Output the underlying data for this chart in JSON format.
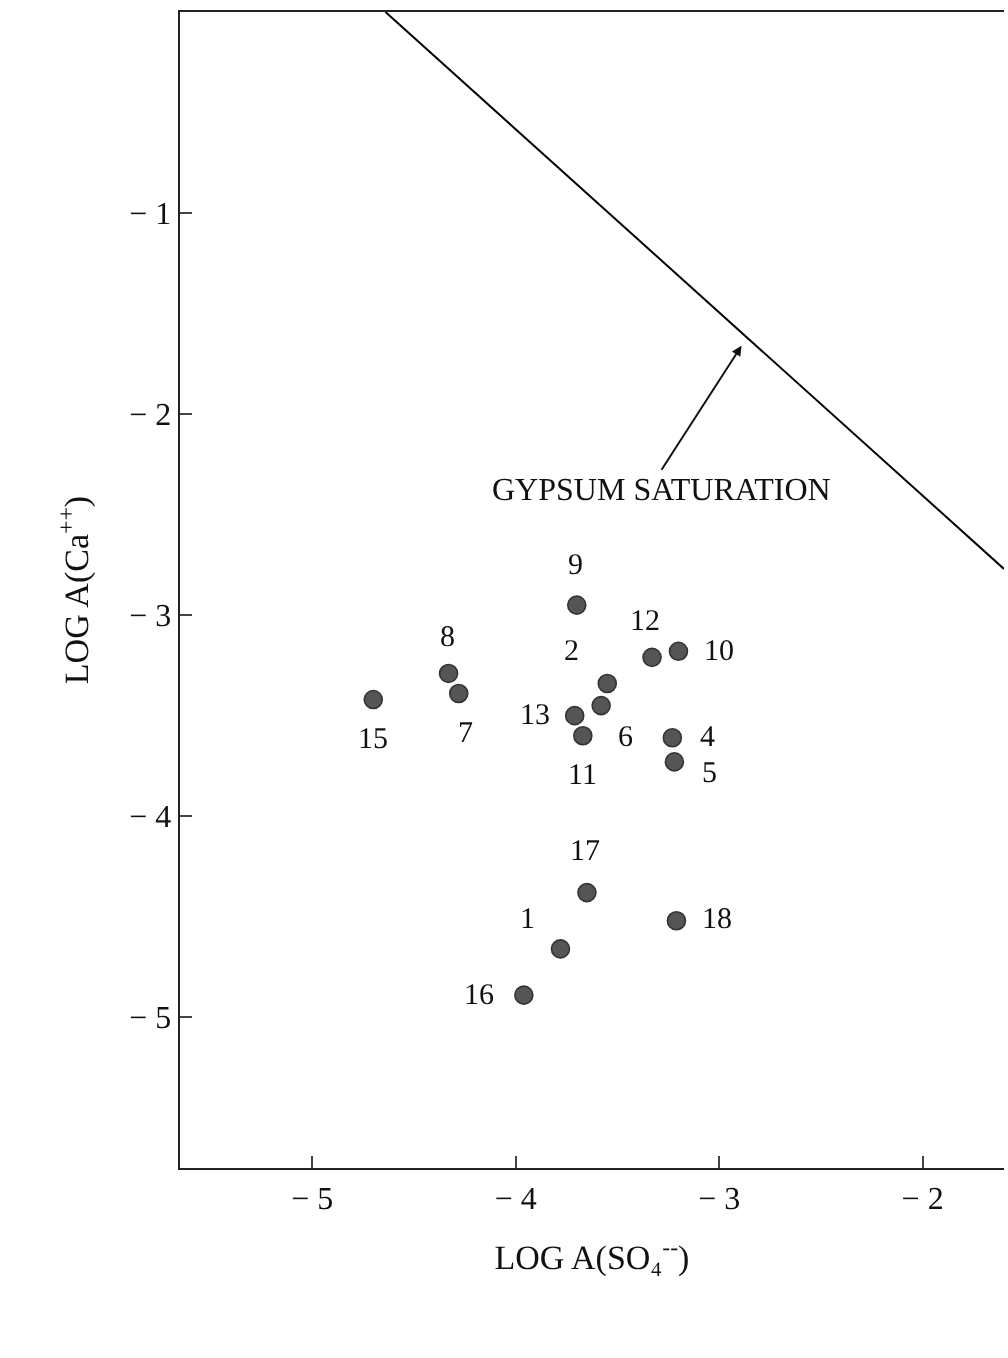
{
  "chart_data": {
    "type": "scatter",
    "xlabel": "LOG A(SO₄$^{--}$)",
    "ylabel": "LOG A(Ca$^{++}$)",
    "xlim": [
      -5.65,
      -1.6
    ],
    "ylim": [
      -5.75,
      0
    ],
    "xticks": [
      {
        "value": -5,
        "label": "− 5"
      },
      {
        "value": -4,
        "label": "− 4"
      },
      {
        "value": -3,
        "label": "− 3"
      },
      {
        "value": -2,
        "label": "− 2"
      }
    ],
    "yticks": [
      {
        "value": -1,
        "label": "− 1"
      },
      {
        "value": -2,
        "label": "− 2"
      },
      {
        "value": -3,
        "label": "− 3"
      },
      {
        "value": -4,
        "label": "− 4"
      },
      {
        "value": -5,
        "label": "− 5"
      }
    ],
    "legend": false,
    "annotations": [
      {
        "text": "GYPSUM SATURATION",
        "x": -2.89,
        "y": -1.66
      },
      {
        "text": "1",
        "x": -3.78,
        "y": -4.66
      },
      {
        "text": "2",
        "x": -3.55,
        "y": -3.34
      },
      {
        "text": "4",
        "x": -3.23,
        "y": -3.61
      },
      {
        "text": "5",
        "x": -3.22,
        "y": -3.73
      },
      {
        "text": "6",
        "x": -3.58,
        "y": -3.45
      },
      {
        "text": "7",
        "x": -4.28,
        "y": -3.39
      },
      {
        "text": "8",
        "x": -4.33,
        "y": -3.29
      },
      {
        "text": "9",
        "x": -3.7,
        "y": -2.95
      },
      {
        "text": "10",
        "x": -3.2,
        "y": -3.18
      },
      {
        "text": "11",
        "x": -3.67,
        "y": -3.6
      },
      {
        "text": "12",
        "x": -3.33,
        "y": -3.21
      },
      {
        "text": "13",
        "x": -3.71,
        "y": -3.5
      },
      {
        "text": "15",
        "x": -4.7,
        "y": -3.42
      },
      {
        "text": "16",
        "x": -3.96,
        "y": -4.89
      },
      {
        "text": "17",
        "x": -3.65,
        "y": -4.38
      },
      {
        "text": "18",
        "x": -3.21,
        "y": -4.52
      }
    ],
    "series": [
      {
        "color": "#555555",
        "marker": "circle",
        "x": [
          -3.78,
          -3.55,
          -3.23,
          -3.22,
          -3.58,
          -4.28,
          -4.33,
          -3.7,
          -3.2,
          -3.67,
          -3.33,
          -3.71,
          -4.7,
          -3.96,
          -3.65,
          -3.21
        ],
        "values": [
          -4.66,
          -3.34,
          -3.61,
          -3.73,
          -3.45,
          -3.39,
          -3.29,
          -2.95,
          -3.18,
          -3.6,
          -3.21,
          -3.5,
          -3.42,
          -4.89,
          -4.38,
          -4.52
        ]
      },
      {
        "type": "line",
        "color": "#000000",
        "x": [
          -4.64,
          -1.6
        ],
        "values": [
          0,
          -2.77
        ]
      }
    ]
  }
}
